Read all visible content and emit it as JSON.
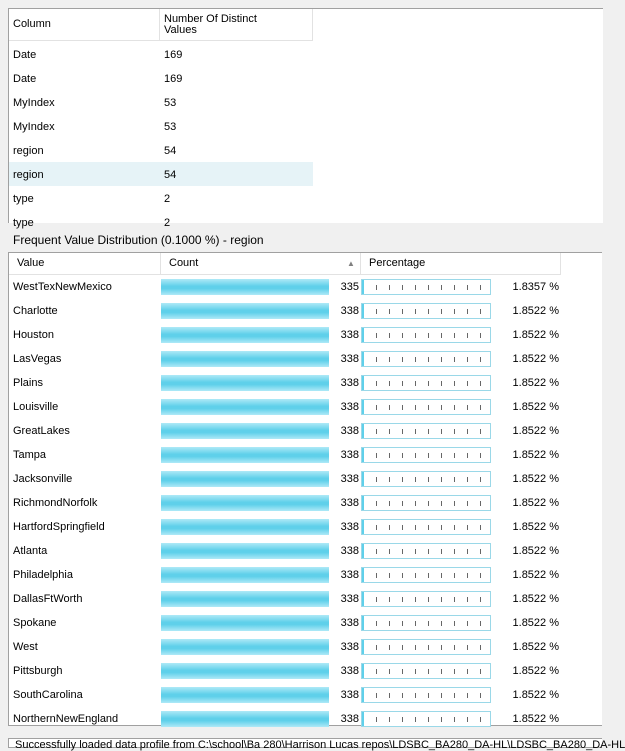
{
  "top_grid": {
    "headers": {
      "column": "Column",
      "distinct_line1": "Number Of Distinct",
      "distinct_line2": "Values"
    },
    "rows": [
      {
        "column": "Date",
        "value": "169"
      },
      {
        "column": "Date",
        "value": "169"
      },
      {
        "column": "MyIndex",
        "value": "53"
      },
      {
        "column": "MyIndex",
        "value": "53"
      },
      {
        "column": "region",
        "value": "54"
      },
      {
        "column": "region",
        "value": "54",
        "selected": true
      },
      {
        "column": "type",
        "value": "2"
      },
      {
        "column": "type",
        "value": "2"
      }
    ]
  },
  "distribution": {
    "caption": "Frequent Value Distribution (0.1000 %) - region",
    "headers": {
      "value": "Value",
      "count": "Count",
      "percentage": "Percentage"
    },
    "bar_color": "#5fd0ea",
    "rows": [
      {
        "value": "WestTexNewMexico",
        "count": "335",
        "percentage": "1.8357 %"
      },
      {
        "value": "Charlotte",
        "count": "338",
        "percentage": "1.8522 %"
      },
      {
        "value": "Houston",
        "count": "338",
        "percentage": "1.8522 %"
      },
      {
        "value": "LasVegas",
        "count": "338",
        "percentage": "1.8522 %"
      },
      {
        "value": "Plains",
        "count": "338",
        "percentage": "1.8522 %"
      },
      {
        "value": "Louisville",
        "count": "338",
        "percentage": "1.8522 %"
      },
      {
        "value": "GreatLakes",
        "count": "338",
        "percentage": "1.8522 %"
      },
      {
        "value": "Tampa",
        "count": "338",
        "percentage": "1.8522 %"
      },
      {
        "value": "Jacksonville",
        "count": "338",
        "percentage": "1.8522 %"
      },
      {
        "value": "RichmondNorfolk",
        "count": "338",
        "percentage": "1.8522 %"
      },
      {
        "value": "HartfordSpringfield",
        "count": "338",
        "percentage": "1.8522 %"
      },
      {
        "value": "Atlanta",
        "count": "338",
        "percentage": "1.8522 %"
      },
      {
        "value": "Philadelphia",
        "count": "338",
        "percentage": "1.8522 %"
      },
      {
        "value": "DallasFtWorth",
        "count": "338",
        "percentage": "1.8522 %"
      },
      {
        "value": "Spokane",
        "count": "338",
        "percentage": "1.8522 %"
      },
      {
        "value": "West",
        "count": "338",
        "percentage": "1.8522 %"
      },
      {
        "value": "Pittsburgh",
        "count": "338",
        "percentage": "1.8522 %"
      },
      {
        "value": "SouthCarolina",
        "count": "338",
        "percentage": "1.8522 %"
      },
      {
        "value": "NorthernNewEngland",
        "count": "338",
        "percentage": "1.8522 %"
      }
    ]
  },
  "status": {
    "text": "Successfully loaded data profile from C:\\school\\Ba 280\\Harrison Lucas repos\\LDSBC_BA280_DA-HL\\LDSBC_BA280_DA-HL"
  }
}
